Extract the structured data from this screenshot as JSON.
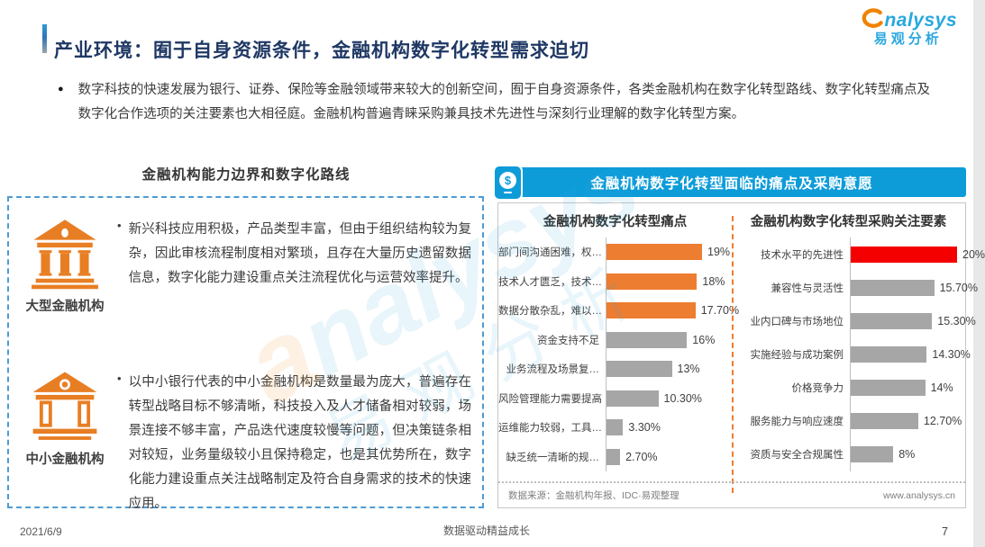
{
  "header": {
    "title": "产业环境：囿于自身资源条件，金融机构数字化转型需求迫切",
    "logo": {
      "brand_en": "nalysys",
      "brand_cn": "易观分析"
    }
  },
  "intro": {
    "bullet_glyph": "●",
    "text": "数字科技的快速发展为银行、证券、保险等金融领域带来较大的创新空间，囿于自身资源条件，各类金融机构在数字化转型路线、数字化转型痛点及数字化合作选项的关注要素也大相径庭。金融机构普遍青睐采购兼具技术先进性与深刻行业理解的数字化转型方案。"
  },
  "left_panel": {
    "title": "金融机构能力边界和数字化路线",
    "blocks": [
      {
        "icon": "bank-large-icon",
        "label": "大型金融机构",
        "bullet_glyph": "•",
        "text": "新兴科技应用积极，产品类型丰富，但由于组织结构较为复杂，因此审核流程制度相对繁琐，且存在大量历史遗留数据信息，数字化能力建设重点关注流程优化与运营效率提升。"
      },
      {
        "icon": "bank-small-icon",
        "label": "中小金融机构",
        "bullet_glyph": "•",
        "text": "以中小银行代表的中小金融机构是数量最为庞大，普遍存在转型战略目标不够清晰，科技投入及人才储备相对较弱，场景连接不够丰富，产品迭代速度较慢等问题，但决策链条相对较短，业务量级较小且保持稳定，也是其优势所在，数字化能力建设重点关注战略制定及符合自身需求的技术的快速应用。"
      }
    ]
  },
  "right_panel": {
    "banner": {
      "icon": "money-icon",
      "icon_symbol": "$",
      "title": "金融机构数字化转型面临的痛点及采购意愿"
    },
    "source_note": "数据来源：金融机构年报、IDC·易观整理",
    "website": "www.analysys.cn"
  },
  "chart_data": [
    {
      "type": "bar",
      "orientation": "horizontal",
      "title": "金融机构数字化转型痛点",
      "categories": [
        "部门间沟通困难，权…",
        "技术人才匮乏，技术…",
        "数据分散杂乱，难以…",
        "资金支持不足",
        "业务流程及场景复…",
        "风险管理能力需要提高",
        "运维能力较弱，工具…",
        "缺乏统一清晰的规…"
      ],
      "values": [
        19,
        18,
        17.7,
        16,
        13,
        10.3,
        3.3,
        2.7
      ],
      "value_labels": [
        "19%",
        "18%",
        "17.70%",
        "16%",
        "13%",
        "10.30%",
        "3.30%",
        "2.70%"
      ],
      "bar_colors": [
        "#ed7d31",
        "#ed7d31",
        "#ed7d31",
        "#a6a6a6",
        "#a6a6a6",
        "#a6a6a6",
        "#a6a6a6",
        "#a6a6a6"
      ],
      "xlim": [
        0,
        20
      ],
      "grid": false,
      "value_label_position": "end"
    },
    {
      "type": "bar",
      "orientation": "horizontal",
      "title": "金融机构数字化转型采购关注要素",
      "categories": [
        "技术水平的先进性",
        "兼容性与灵活性",
        "业内口碑与市场地位",
        "实施经验与成功案例",
        "价格竞争力",
        "服务能力与响应速度",
        "资质与安全合规属性"
      ],
      "values": [
        20,
        15.7,
        15.3,
        14.3,
        14,
        12.7,
        8
      ],
      "value_labels": [
        "20%",
        "15.70%",
        "15.30%",
        "14.30%",
        "14%",
        "12.70%",
        "8%"
      ],
      "bar_colors": [
        "#f40000",
        "#a6a6a6",
        "#a6a6a6",
        "#a6a6a6",
        "#a6a6a6",
        "#a6a6a6",
        "#a6a6a6"
      ],
      "xlim": [
        0,
        20
      ],
      "grid": false,
      "value_label_position": "end"
    }
  ],
  "footer": {
    "date": "2021/6/9",
    "center": "数据驱动精益成长",
    "page": "7"
  },
  "watermark": {
    "a": "a",
    "en": "nalysys",
    "cn": "易观分析"
  },
  "colors": {
    "title_navy": "#1f3864",
    "banner_blue": "#0e9cd9",
    "logo_blue": "#29a7de",
    "logo_orange": "#f08300",
    "bar_orange": "#ed7d31",
    "bar_red": "#f40000",
    "bar_gray": "#a6a6a6",
    "icon_orange": "#e87e23",
    "dashed_border_blue": "#4e9bd4"
  }
}
